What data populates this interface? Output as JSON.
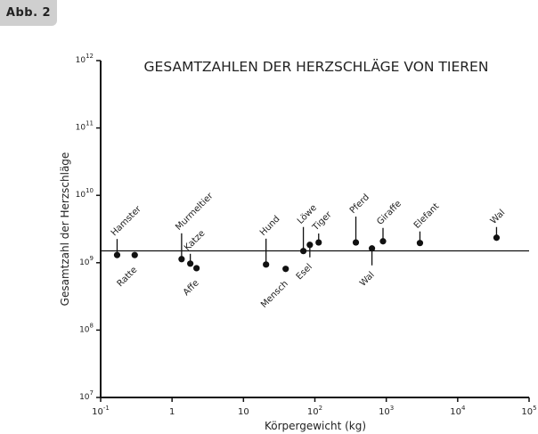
{
  "figure_label": "Abb. 2",
  "chart_data": {
    "type": "scatter",
    "title": "GESAMTZAHLEN DER HERZSCHLÄGE VON TIEREN",
    "xlabel": "Körpergewicht (kg)",
    "ylabel": "Gesamtzahl der Herzschläge",
    "xscale": "log",
    "yscale": "log",
    "xlim": [
      0.1,
      100000
    ],
    "ylim": [
      10000000,
      1000000000000
    ],
    "x_ticks": [
      {
        "base": "10",
        "exp": "-1"
      },
      {
        "base": "1",
        "exp": ""
      },
      {
        "base": "10",
        "exp": ""
      },
      {
        "base": "10",
        "exp": "2"
      },
      {
        "base": "10",
        "exp": "3"
      },
      {
        "base": "10",
        "exp": "4"
      },
      {
        "base": "10",
        "exp": "5"
      }
    ],
    "y_ticks": [
      {
        "base": "10",
        "exp": "7"
      },
      {
        "base": "10",
        "exp": "8"
      },
      {
        "base": "10",
        "exp": "9"
      },
      {
        "base": "10",
        "exp": "10"
      },
      {
        "base": "10",
        "exp": "11"
      },
      {
        "base": "10",
        "exp": "12"
      }
    ],
    "reference_line": 1500000000,
    "grid": false,
    "points": [
      {
        "label": "Hamster",
        "x": 0.17,
        "y": 1300000000,
        "label_position": "above"
      },
      {
        "label": "Ratte",
        "x": 0.3,
        "y": 1300000000,
        "label_position": "below"
      },
      {
        "label": "Murmeltier",
        "x": 1.36,
        "y": 1130000000,
        "label_position": "above"
      },
      {
        "label": "Katze",
        "x": 1.8,
        "y": 970000000,
        "label_position": "above"
      },
      {
        "label": "Affe",
        "x": 2.2,
        "y": 830000000,
        "label_position": "below"
      },
      {
        "label": "Hund",
        "x": 20.7,
        "y": 940000000,
        "label_position": "above"
      },
      {
        "label": "Mensch",
        "x": 39,
        "y": 810000000,
        "label_position": "below"
      },
      {
        "label": "Löwe",
        "x": 69,
        "y": 1490000000,
        "label_position": "above"
      },
      {
        "label": "Esel",
        "x": 85,
        "y": 1840000000,
        "label_position": "below"
      },
      {
        "label": "Tiger",
        "x": 113,
        "y": 2000000000,
        "label_position": "above"
      },
      {
        "label": "Pferd",
        "x": 375,
        "y": 2000000000,
        "label_position": "above"
      },
      {
        "label": "Wal",
        "x": 630,
        "y": 1630000000,
        "label_position": "below"
      },
      {
        "label": "Giraffe",
        "x": 900,
        "y": 2080000000,
        "label_position": "above"
      },
      {
        "label": "Elefant",
        "x": 2960,
        "y": 1960000000,
        "label_position": "above"
      },
      {
        "label": "Wal",
        "x": 35000,
        "y": 2350000000,
        "label_position": "above"
      }
    ]
  }
}
